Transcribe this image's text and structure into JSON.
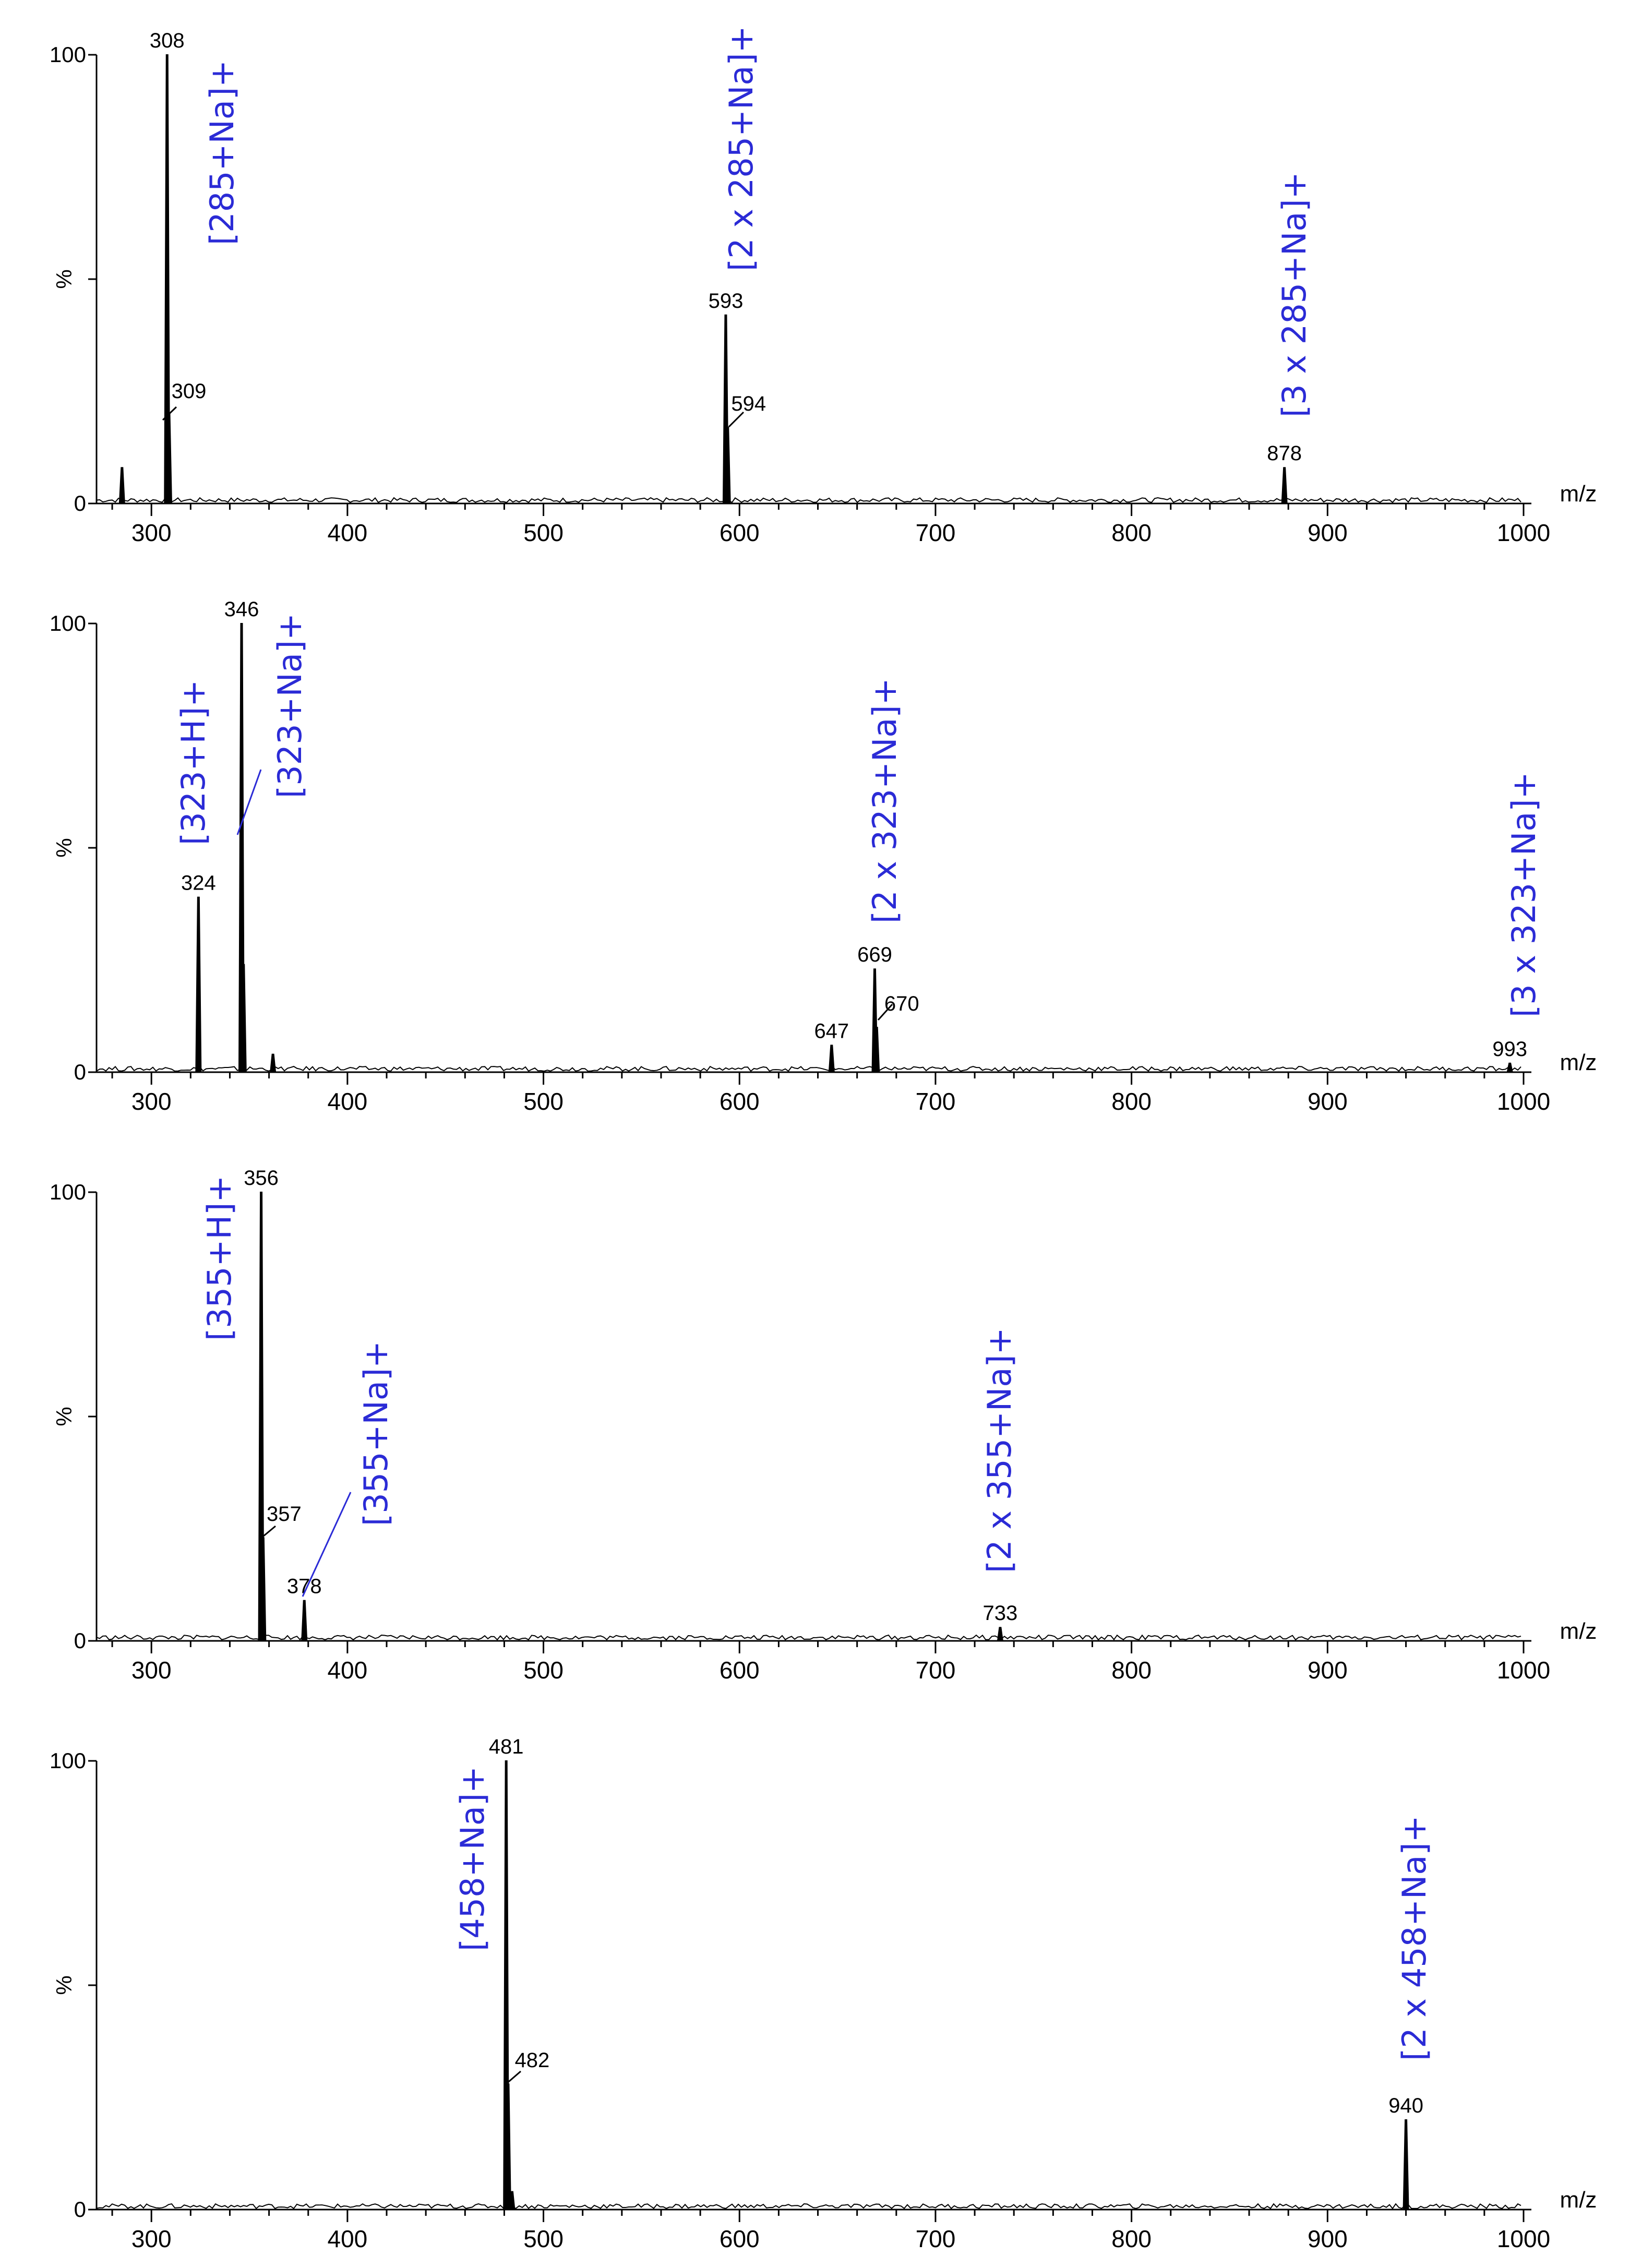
{
  "chart_data": [
    {
      "type": "line",
      "subtype": "mass-spectrum",
      "xlabel": "m/z",
      "ylabel": "%",
      "xlim": [
        272,
        1000
      ],
      "ylim": [
        0,
        100
      ],
      "yticks": [
        "100",
        "%",
        "0"
      ],
      "xticks": [
        "300",
        "400",
        "500",
        "600",
        "700",
        "800",
        "900",
        "1000"
      ],
      "peaks": [
        {
          "mz": 285,
          "intensity": 8,
          "label": ""
        },
        {
          "mz": 308,
          "intensity": 100,
          "label": "308"
        },
        {
          "mz": 309,
          "intensity": 20,
          "label": "309"
        },
        {
          "mz": 593,
          "intensity": 42,
          "label": "593"
        },
        {
          "mz": 594,
          "intensity": 17,
          "label": "594"
        },
        {
          "mz": 878,
          "intensity": 8,
          "label": "878"
        }
      ],
      "annotations": [
        "[285+Na]+",
        "[2 x 285+Na]+",
        "[3 x 285+Na]+"
      ]
    },
    {
      "type": "line",
      "subtype": "mass-spectrum",
      "xlabel": "m/z",
      "ylabel": "%",
      "xlim": [
        272,
        1000
      ],
      "ylim": [
        0,
        100
      ],
      "yticks": [
        "100",
        "%",
        "0"
      ],
      "xticks": [
        "300",
        "400",
        "500",
        "600",
        "700",
        "800",
        "900",
        "1000"
      ],
      "peaks": [
        {
          "mz": 324,
          "intensity": 39,
          "label": "324"
        },
        {
          "mz": 346,
          "intensity": 100,
          "label": "346"
        },
        {
          "mz": 347,
          "intensity": 24,
          "label": ""
        },
        {
          "mz": 362,
          "intensity": 4,
          "label": ""
        },
        {
          "mz": 647,
          "intensity": 6,
          "label": "647"
        },
        {
          "mz": 669,
          "intensity": 23,
          "label": "669"
        },
        {
          "mz": 670,
          "intensity": 10,
          "label": "670"
        },
        {
          "mz": 993,
          "intensity": 2,
          "label": "993"
        }
      ],
      "annotations": [
        "[323+H]+",
        "[323+Na]+",
        "[2 x 323+Na]+",
        "[3 x 323+Na]+"
      ]
    },
    {
      "type": "line",
      "subtype": "mass-spectrum",
      "xlabel": "m/z",
      "ylabel": "%",
      "xlim": [
        272,
        1000
      ],
      "ylim": [
        0,
        100
      ],
      "yticks": [
        "100",
        "%",
        "0"
      ],
      "xticks": [
        "300",
        "400",
        "500",
        "600",
        "700",
        "800",
        "900",
        "1000"
      ],
      "peaks": [
        {
          "mz": 356,
          "intensity": 100,
          "label": "356"
        },
        {
          "mz": 357,
          "intensity": 23,
          "label": "357"
        },
        {
          "mz": 378,
          "intensity": 9,
          "label": "378"
        },
        {
          "mz": 733,
          "intensity": 3,
          "label": "733"
        }
      ],
      "annotations": [
        "[355+H]+",
        "[355+Na]+",
        "[2 x 355+Na]+"
      ]
    },
    {
      "type": "line",
      "subtype": "mass-spectrum",
      "xlabel": "m/z",
      "ylabel": "%",
      "xlim": [
        272,
        1000
      ],
      "ylim": [
        0,
        100
      ],
      "yticks": [
        "100",
        "%",
        "0"
      ],
      "xticks": [
        "300",
        "400",
        "500",
        "600",
        "700",
        "800",
        "900",
        "1000"
      ],
      "peaks": [
        {
          "mz": 481,
          "intensity": 100,
          "label": "481"
        },
        {
          "mz": 482,
          "intensity": 28,
          "label": "482"
        },
        {
          "mz": 484,
          "intensity": 4,
          "label": ""
        },
        {
          "mz": 940,
          "intensity": 20,
          "label": "940"
        }
      ],
      "annotations": [
        "[458+Na]+",
        "[2 x 458+Na]+"
      ]
    }
  ],
  "colors": {
    "ion_label": "#2b2bd6",
    "trace": "#000000"
  }
}
